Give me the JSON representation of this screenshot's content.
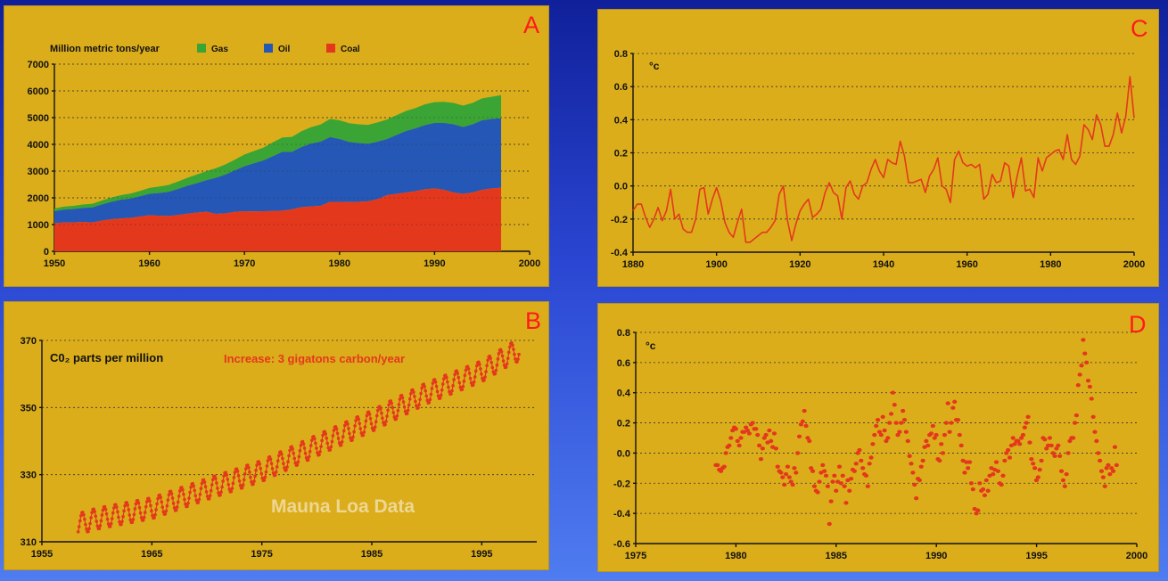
{
  "colors": {
    "background_top": "#10209a",
    "background_bottom": "#4f7cf0",
    "panel": "#dbad1b",
    "red": "#e4381c",
    "gas": "#3aa534",
    "oil": "#2557b6",
    "coal": "#e4381c",
    "letter": "#ff1a1a"
  },
  "chart_data": [
    {
      "id": "A",
      "type": "area",
      "title": "Million metric tons/year",
      "stacked": true,
      "x": [
        1950,
        1951,
        1952,
        1953,
        1954,
        1955,
        1956,
        1957,
        1958,
        1959,
        1960,
        1961,
        1962,
        1963,
        1964,
        1965,
        1966,
        1967,
        1968,
        1969,
        1970,
        1971,
        1972,
        1973,
        1974,
        1975,
        1976,
        1977,
        1978,
        1979,
        1980,
        1981,
        1982,
        1983,
        1984,
        1985,
        1986,
        1987,
        1988,
        1989,
        1990,
        1991,
        1992,
        1993,
        1994,
        1995,
        1996,
        1997
      ],
      "series": [
        {
          "name": "Coal",
          "values": [
            1050,
            1080,
            1080,
            1100,
            1080,
            1150,
            1200,
            1230,
            1250,
            1300,
            1350,
            1330,
            1320,
            1360,
            1410,
            1450,
            1480,
            1400,
            1420,
            1480,
            1500,
            1490,
            1500,
            1510,
            1520,
            1570,
            1650,
            1680,
            1700,
            1850,
            1850,
            1840,
            1850,
            1870,
            1950,
            2100,
            2150,
            2200,
            2250,
            2320,
            2350,
            2300,
            2200,
            2150,
            2200,
            2300,
            2350,
            2380
          ]
        },
        {
          "name": "Oil",
          "values": [
            450,
            480,
            500,
            520,
            560,
            600,
            650,
            700,
            720,
            760,
            800,
            850,
            900,
            970,
            1040,
            1100,
            1180,
            1350,
            1450,
            1550,
            1680,
            1800,
            1900,
            2050,
            2200,
            2150,
            2250,
            2350,
            2400,
            2420,
            2350,
            2250,
            2200,
            2150,
            2150,
            2100,
            2200,
            2300,
            2350,
            2400,
            2450,
            2500,
            2550,
            2500,
            2550,
            2600,
            2600,
            2600
          ]
        },
        {
          "name": "Gas",
          "values": [
            100,
            110,
            120,
            130,
            140,
            150,
            160,
            170,
            190,
            200,
            220,
            240,
            260,
            280,
            300,
            320,
            340,
            360,
            380,
            400,
            440,
            460,
            480,
            520,
            540,
            560,
            590,
            610,
            640,
            680,
            700,
            700,
            700,
            710,
            720,
            730,
            740,
            750,
            760,
            780,
            780,
            790,
            800,
            800,
            800,
            820,
            830,
            860
          ]
        }
      ],
      "ylim": [
        0,
        7000
      ],
      "xlim": [
        1950,
        2000
      ],
      "yticks": [
        "0",
        "1000",
        "2000",
        "3000",
        "4000",
        "5000",
        "6000",
        "7000"
      ],
      "xticks": [
        "1950",
        "1960",
        "1970",
        "1980",
        "1990",
        "2000"
      ],
      "legend": "top",
      "grid": true
    },
    {
      "id": "B",
      "type": "scatter",
      "title": "C0₂ parts per million",
      "annotation": "Increase: 3 gigatons carbon/year",
      "watermark": "Mauna Loa Data",
      "x_start": 1958.3,
      "trend": [
        [
          1958,
          315
        ],
        [
          1960,
          316.9
        ],
        [
          1965,
          320.0
        ],
        [
          1970,
          325.7
        ],
        [
          1975,
          331.1
        ],
        [
          1980,
          338.7
        ],
        [
          1985,
          346.0
        ],
        [
          1990,
          354.3
        ],
        [
          1995,
          360.8
        ],
        [
          1998,
          366.7
        ]
      ],
      "seasonal_amplitude": 3.2,
      "ylim": [
        310,
        370
      ],
      "xlim": [
        1955,
        2000
      ],
      "yticks": [
        "310",
        "330",
        "350",
        "370"
      ],
      "xticks": [
        "1955",
        "1965",
        "1975",
        "1985",
        "1995"
      ],
      "grid": true
    },
    {
      "id": "C",
      "type": "line",
      "ylabel": "°c",
      "x_start": 1880,
      "values": [
        -0.15,
        -0.11,
        -0.11,
        -0.19,
        -0.25,
        -0.2,
        -0.13,
        -0.21,
        -0.15,
        -0.02,
        -0.2,
        -0.17,
        -0.26,
        -0.28,
        -0.28,
        -0.2,
        -0.02,
        -0.01,
        -0.17,
        -0.08,
        -0.01,
        -0.09,
        -0.22,
        -0.28,
        -0.31,
        -0.22,
        -0.14,
        -0.34,
        -0.34,
        -0.32,
        -0.3,
        -0.28,
        -0.28,
        -0.25,
        -0.21,
        -0.05,
        0.0,
        -0.21,
        -0.33,
        -0.23,
        -0.15,
        -0.11,
        -0.08,
        -0.19,
        -0.17,
        -0.14,
        -0.04,
        0.02,
        -0.04,
        -0.06,
        -0.2,
        -0.01,
        0.03,
        -0.05,
        -0.08,
        0.0,
        0.02,
        0.1,
        0.16,
        0.09,
        0.05,
        0.16,
        0.14,
        0.13,
        0.27,
        0.18,
        0.02,
        0.02,
        0.03,
        0.04,
        -0.04,
        0.06,
        0.1,
        0.17,
        0.0,
        -0.02,
        -0.1,
        0.16,
        0.21,
        0.14,
        0.12,
        0.13,
        0.11,
        0.13,
        -0.08,
        -0.05,
        0.07,
        0.02,
        0.03,
        0.14,
        0.12,
        -0.07,
        0.06,
        0.17,
        -0.03,
        -0.02,
        -0.07,
        0.17,
        0.09,
        0.17,
        0.19,
        0.21,
        0.22,
        0.16,
        0.31,
        0.16,
        0.13,
        0.18,
        0.37,
        0.34,
        0.28,
        0.43,
        0.37,
        0.24,
        0.24,
        0.31,
        0.44,
        0.32,
        0.42,
        0.66,
        0.41
      ],
      "ylim": [
        -0.4,
        0.8
      ],
      "xlim": [
        1880,
        2000
      ],
      "yticks": [
        "-0.4",
        "-0.2",
        "0.0",
        "0.2",
        "0.4",
        "0.6",
        "0.8"
      ],
      "xticks": [
        "1880",
        "1900",
        "1920",
        "1940",
        "1960",
        "1980",
        "2000"
      ],
      "grid": true
    },
    {
      "id": "D",
      "type": "scatter",
      "ylabel": "°c",
      "x_start": 1979.0,
      "x_step": 0.0833,
      "values": [
        -0.08,
        -0.08,
        -0.11,
        -0.12,
        -0.1,
        -0.09,
        0.0,
        0.04,
        0.05,
        0.1,
        0.15,
        0.17,
        0.16,
        0.08,
        0.05,
        0.1,
        0.14,
        0.14,
        0.17,
        0.15,
        0.13,
        0.19,
        0.2,
        0.16,
        0.16,
        0.12,
        0.05,
        -0.04,
        0.03,
        0.1,
        0.12,
        0.07,
        0.15,
        0.08,
        0.04,
        0.13,
        0.03,
        -0.09,
        -0.12,
        -0.13,
        -0.16,
        -0.21,
        -0.14,
        -0.09,
        -0.16,
        -0.19,
        -0.21,
        -0.1,
        -0.13,
        0.0,
        0.11,
        0.19,
        0.21,
        0.28,
        0.18,
        0.1,
        0.08,
        -0.1,
        -0.12,
        -0.22,
        -0.25,
        -0.26,
        -0.19,
        -0.13,
        -0.08,
        -0.12,
        -0.15,
        -0.22,
        -0.47,
        -0.32,
        -0.19,
        -0.15,
        -0.25,
        -0.19,
        -0.09,
        -0.2,
        -0.15,
        -0.22,
        -0.33,
        -0.18,
        -0.25,
        -0.17,
        -0.11,
        -0.12,
        -0.07,
        0.0,
        0.02,
        -0.05,
        -0.1,
        -0.14,
        -0.15,
        -0.22,
        -0.07,
        -0.03,
        0.06,
        0.12,
        0.18,
        0.22,
        0.14,
        0.12,
        0.24,
        0.15,
        0.08,
        0.1,
        0.2,
        0.26,
        0.4,
        0.32,
        0.2,
        0.12,
        0.14,
        0.2,
        0.28,
        0.22,
        0.14,
        0.08,
        -0.02,
        -0.07,
        -0.13,
        -0.21,
        -0.3,
        -0.17,
        -0.18,
        -0.09,
        -0.05,
        0.04,
        0.08,
        0.05,
        0.12,
        0.13,
        0.18,
        0.1,
        0.12,
        -0.04,
        -0.05,
        0.06,
        0.0,
        0.12,
        0.2,
        0.33,
        0.14,
        0.2,
        0.3,
        0.34,
        0.22,
        0.22,
        0.12,
        0.05,
        -0.05,
        -0.13,
        -0.06,
        -0.1,
        -0.06,
        -0.2,
        -0.24,
        -0.37,
        -0.4,
        -0.38,
        -0.2,
        -0.25,
        -0.24,
        -0.28,
        -0.18,
        -0.25,
        -0.15,
        -0.1,
        -0.14,
        -0.11,
        -0.06,
        -0.12,
        -0.2,
        -0.21,
        -0.15,
        -0.05,
        0.0,
        0.02,
        -0.03,
        0.05,
        0.1,
        0.06,
        0.08,
        0.08,
        0.06,
        0.1,
        0.12,
        0.17,
        0.2,
        0.24,
        0.07,
        -0.04,
        -0.07,
        -0.1,
        -0.18,
        -0.16,
        -0.11,
        -0.05,
        0.1,
        0.09,
        0.03,
        0.05,
        0.1,
        0.05,
        0.0,
        -0.02,
        0.03,
        0.05,
        -0.02,
        -0.12,
        -0.18,
        -0.22,
        -0.14,
        0.0,
        0.08,
        0.1,
        0.1,
        0.2,
        0.25,
        0.45,
        0.52,
        0.58,
        0.75,
        0.66,
        0.6,
        0.48,
        0.44,
        0.36,
        0.24,
        0.14,
        0.08,
        0.0,
        -0.05,
        -0.12,
        -0.16,
        -0.22,
        -0.1,
        -0.08,
        -0.14,
        -0.1,
        -0.12,
        0.04,
        -0.08
      ],
      "ylim": [
        -0.6,
        0.8
      ],
      "xlim": [
        1975,
        2000
      ],
      "yticks": [
        "-0.6",
        "-0.4",
        "-0.2",
        "0.0",
        "0.2",
        "0.4",
        "0.6",
        "0.8"
      ],
      "xticks": [
        "1975",
        "1980",
        "1985",
        "1990",
        "1995",
        "2000"
      ],
      "grid": true
    }
  ]
}
